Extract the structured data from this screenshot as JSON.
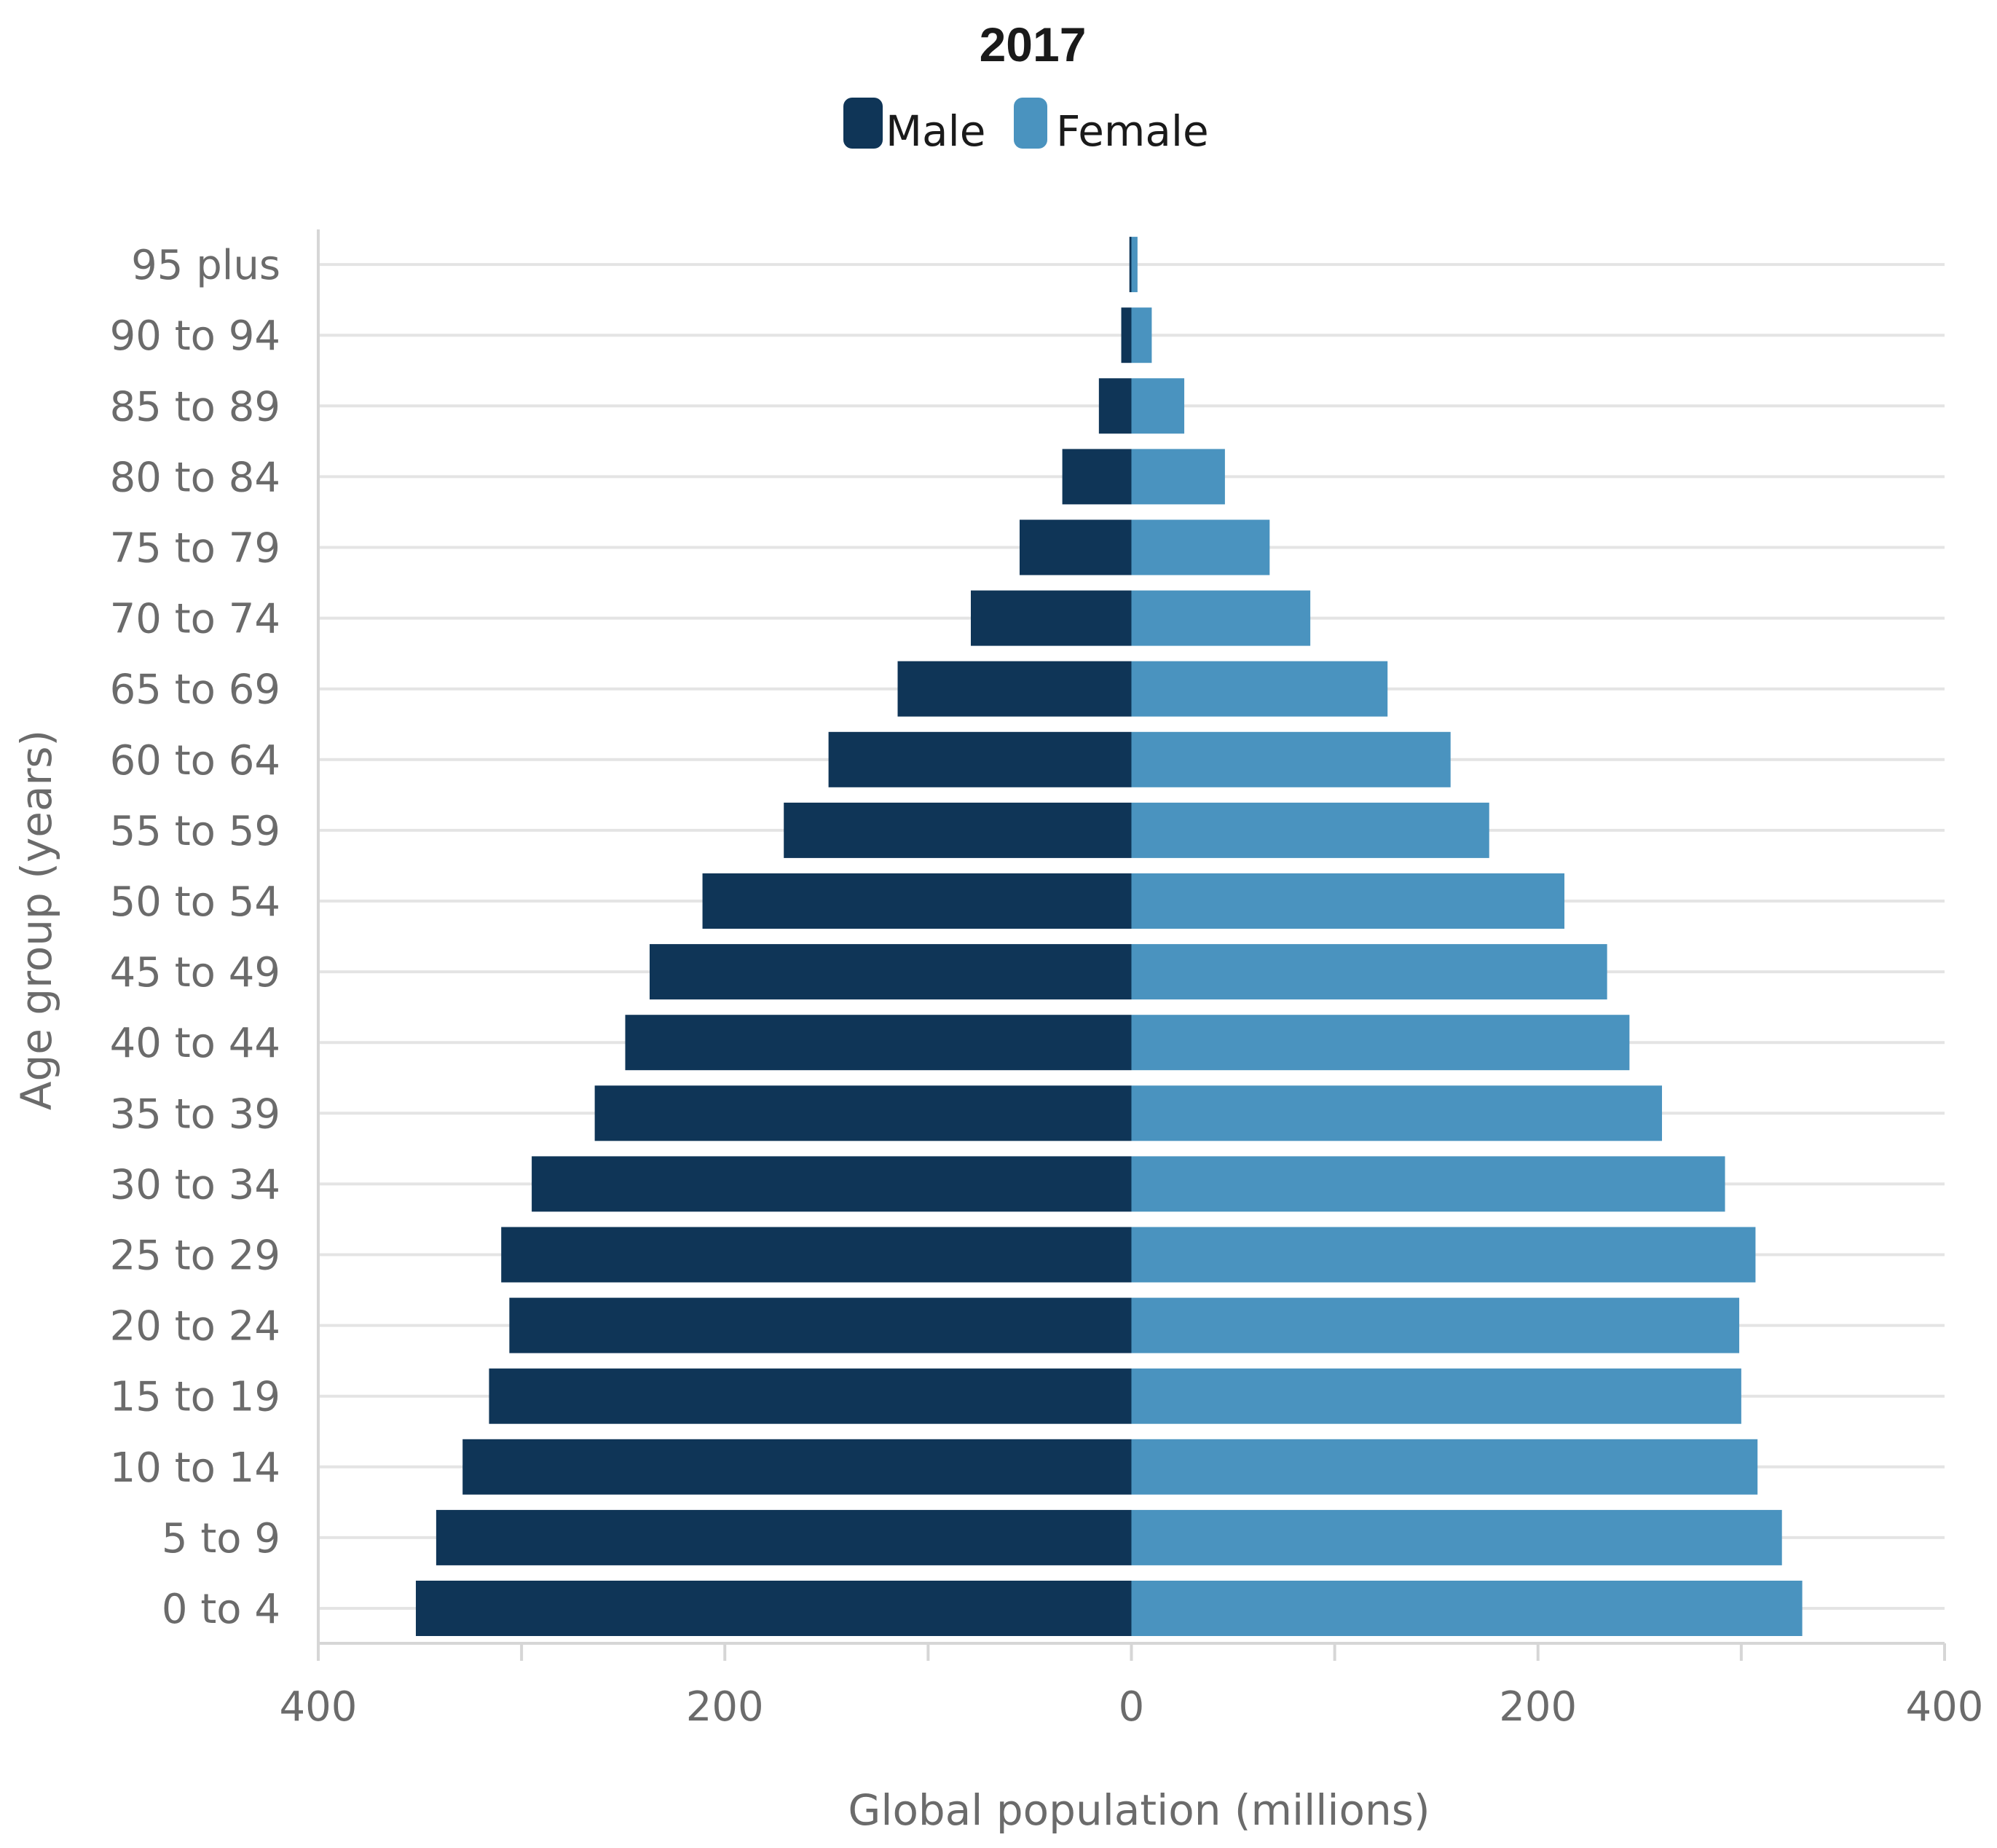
{
  "chart_data": {
    "type": "bar",
    "orientation": "horizontal-diverging",
    "title": "2017",
    "xlabel": "Global population (millions)",
    "ylabel": "Age group (years)",
    "categories": [
      "0 to 4",
      "5 to 9",
      "10 to 14",
      "15 to 19",
      "20 to 24",
      "25 to 29",
      "30 to 34",
      "35 to 39",
      "40 to 44",
      "45 to 49",
      "50 to 54",
      "55 to 59",
      "60 to 64",
      "65 to 69",
      "70 to 74",
      "75 to 79",
      "80 to 84",
      "85 to 89",
      "90 to 94",
      "95 plus"
    ],
    "series": [
      {
        "name": "Male",
        "color": "#0f3557",
        "values": [
          352,
          342,
          329,
          316,
          306,
          310,
          295,
          264,
          249,
          237,
          211,
          171,
          149,
          115,
          79,
          55,
          34,
          16,
          5,
          1
        ]
      },
      {
        "name": "Female",
        "color": "#4a93bf",
        "values": [
          330,
          320,
          308,
          300,
          299,
          307,
          292,
          261,
          245,
          234,
          213,
          176,
          157,
          126,
          88,
          68,
          46,
          26,
          10,
          3
        ]
      }
    ],
    "xlim": [
      -400,
      400
    ],
    "xticks": [
      {
        "value": -400,
        "label": "400"
      },
      {
        "value": -200,
        "label": "200"
      },
      {
        "value": 0,
        "label": "0"
      },
      {
        "value": 200,
        "label": "200"
      },
      {
        "value": 400,
        "label": "400"
      }
    ],
    "grid": "horizontal",
    "legend": "top-center"
  }
}
